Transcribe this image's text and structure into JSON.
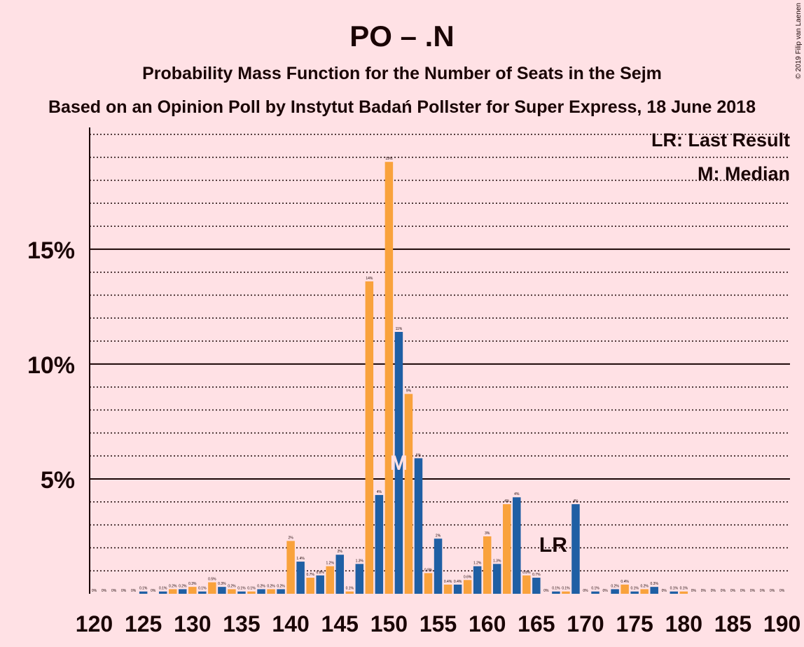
{
  "chart_data": {
    "type": "bar",
    "title": "PO – .N",
    "subtitle": "Probability Mass Function for the Number of Seats in the Sejm",
    "subtitle2": "Based on an Opinion Poll by Instytut Badań Pollster for Super Express, 18 June 2018",
    "copyright": "© 2019 Filip van Laenen",
    "legend": [
      "LR: Last Result",
      "M: Median"
    ],
    "legend_position": "top-right",
    "xlabel": "",
    "ylabel": "",
    "ylim": [
      0,
      20.3
    ],
    "y_ticks": [
      5,
      10,
      15
    ],
    "y_tick_labels": [
      "5%",
      "10%",
      "15%"
    ],
    "x_ticks": [
      120,
      125,
      130,
      135,
      140,
      145,
      150,
      155,
      160,
      165,
      170,
      175,
      180,
      185,
      190
    ],
    "x_tick_labels": [
      "120",
      "125",
      "130",
      "135",
      "140",
      "145",
      "150",
      "155",
      "160",
      "165",
      "170",
      "175",
      "180",
      "185",
      "190"
    ],
    "grid": true,
    "colors": {
      "even": "#F9A23C",
      "odd": "#1F5FA4",
      "background": "#FFE1E5",
      "text": "#1a0505",
      "marker_text": "#FFE1E5"
    },
    "seats": [
      120,
      121,
      122,
      123,
      124,
      125,
      126,
      127,
      128,
      129,
      130,
      131,
      132,
      133,
      134,
      135,
      136,
      137,
      138,
      139,
      140,
      141,
      142,
      143,
      144,
      145,
      146,
      147,
      148,
      149,
      150,
      151,
      152,
      153,
      154,
      155,
      156,
      157,
      158,
      159,
      160,
      161,
      162,
      163,
      164,
      165,
      166,
      167,
      168,
      169,
      170,
      171,
      172,
      173,
      174,
      175,
      176,
      177,
      178,
      179,
      180,
      181,
      182,
      183,
      184,
      185,
      186,
      187,
      188,
      189,
      190
    ],
    "values": [
      0,
      0,
      0,
      0,
      0,
      0.1,
      0,
      0.1,
      0.2,
      0.2,
      0.3,
      0.1,
      0.5,
      0.3,
      0.2,
      0.1,
      0.1,
      0.2,
      0.2,
      0.2,
      2.3,
      1.4,
      0.7,
      0.8,
      1.2,
      1.7,
      0.1,
      1.3,
      13.6,
      4.3,
      18.8,
      11.4,
      8.7,
      5.9,
      0.9,
      2.4,
      0.4,
      0.4,
      0.6,
      1.2,
      2.5,
      1.3,
      3.9,
      4.2,
      0.8,
      0.7,
      0,
      0.1,
      0.1,
      3.9,
      0,
      0.1,
      0,
      0.2,
      0.4,
      0.1,
      0.2,
      0.3,
      0,
      0.1,
      0.1,
      0,
      0,
      0,
      0,
      0,
      0,
      0,
      0,
      0,
      0
    ],
    "labels": [
      "0%",
      "0%",
      "0%",
      "0%",
      "0%",
      "0.1%",
      "0%",
      "0.1%",
      "0.2%",
      "0.2%",
      "0.3%",
      "0.1%",
      "0.5%",
      "0.3%",
      "0.2%",
      "0.1%",
      "0.1%",
      "0.2%",
      "0.2%",
      "0.2%",
      "2%",
      "1.4%",
      "0.7%",
      "0.8%",
      "1.2%",
      "2%",
      "0.1%",
      "1.3%",
      "14%",
      "4%",
      "19%",
      "11%",
      "9%",
      "6%",
      "0.9%",
      "2%",
      "0.4%",
      "0.4%",
      "0.6%",
      "1.2%",
      "3%",
      "1.3%",
      "4%",
      "4%",
      "0.8%",
      "0.7%",
      "0%",
      "0.1%",
      "0.1%",
      "4%",
      "0%",
      "0.1%",
      "0%",
      "0.2%",
      "0.4%",
      "0.1%",
      "0.2%",
      "0.3%",
      "0%",
      "0.1%",
      "0.1%",
      "0%",
      "0%",
      "0%",
      "0%",
      "0%",
      "0%",
      "0%",
      "0%",
      "0%",
      "0%"
    ],
    "median": {
      "seat": 151,
      "label": "M"
    },
    "last_result": {
      "seat": 166,
      "label": "LR"
    }
  }
}
